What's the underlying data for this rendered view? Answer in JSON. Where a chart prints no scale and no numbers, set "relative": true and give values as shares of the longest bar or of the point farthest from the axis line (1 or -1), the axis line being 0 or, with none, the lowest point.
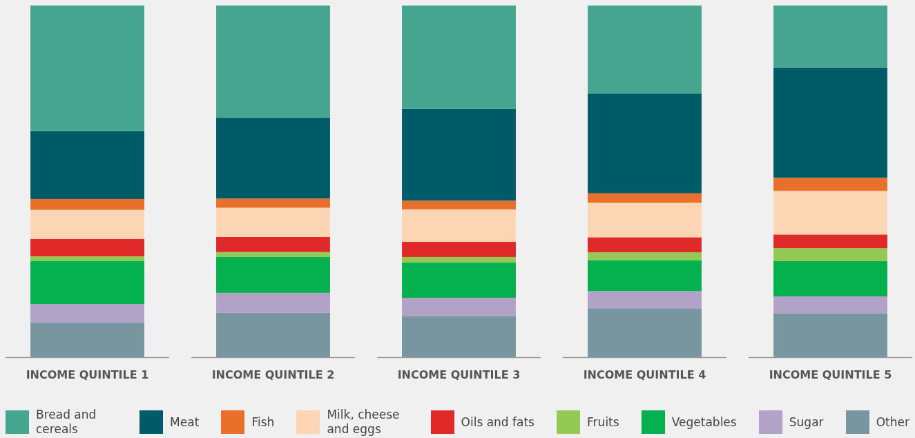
{
  "chart_data": {
    "type": "bar",
    "stacked": true,
    "relative": true,
    "legend": "bottom",
    "categories": [
      "INCOME QUINTILE 1",
      "INCOME QUINTILE 2",
      "INCOME QUINTILE 3",
      "INCOME QUINTILE 4",
      "INCOME QUINTILE 5"
    ],
    "series": [
      {
        "name": "Other",
        "color": "#7896a0",
        "values": [
          0.098,
          0.126,
          0.116,
          0.139,
          0.124
        ]
      },
      {
        "name": "Sugar",
        "color": "#b3a2c7",
        "values": [
          0.053,
          0.057,
          0.053,
          0.049,
          0.049
        ]
      },
      {
        "name": "Vegetables",
        "color": "#05b04f",
        "values": [
          0.122,
          0.102,
          0.1,
          0.088,
          0.1
        ]
      },
      {
        "name": "Fruits",
        "color": "#93c954",
        "values": [
          0.014,
          0.014,
          0.016,
          0.022,
          0.037
        ]
      },
      {
        "name": "Oils and fats",
        "color": "#e02a2a",
        "values": [
          0.049,
          0.043,
          0.043,
          0.043,
          0.039
        ]
      },
      {
        "name": "Milk, cheese and eggs",
        "color": "#fcd5b5",
        "values": [
          0.083,
          0.083,
          0.092,
          0.098,
          0.124
        ]
      },
      {
        "name": "Fish",
        "color": "#e8702a",
        "values": [
          0.031,
          0.026,
          0.025,
          0.027,
          0.037
        ]
      },
      {
        "name": "Meat",
        "color": "#005b69",
        "values": [
          0.193,
          0.23,
          0.261,
          0.284,
          0.314
        ]
      },
      {
        "name": "Bread and cereals",
        "color": "#46a58e",
        "values": [
          0.357,
          0.319,
          0.294,
          0.25,
          0.176
        ]
      }
    ]
  }
}
